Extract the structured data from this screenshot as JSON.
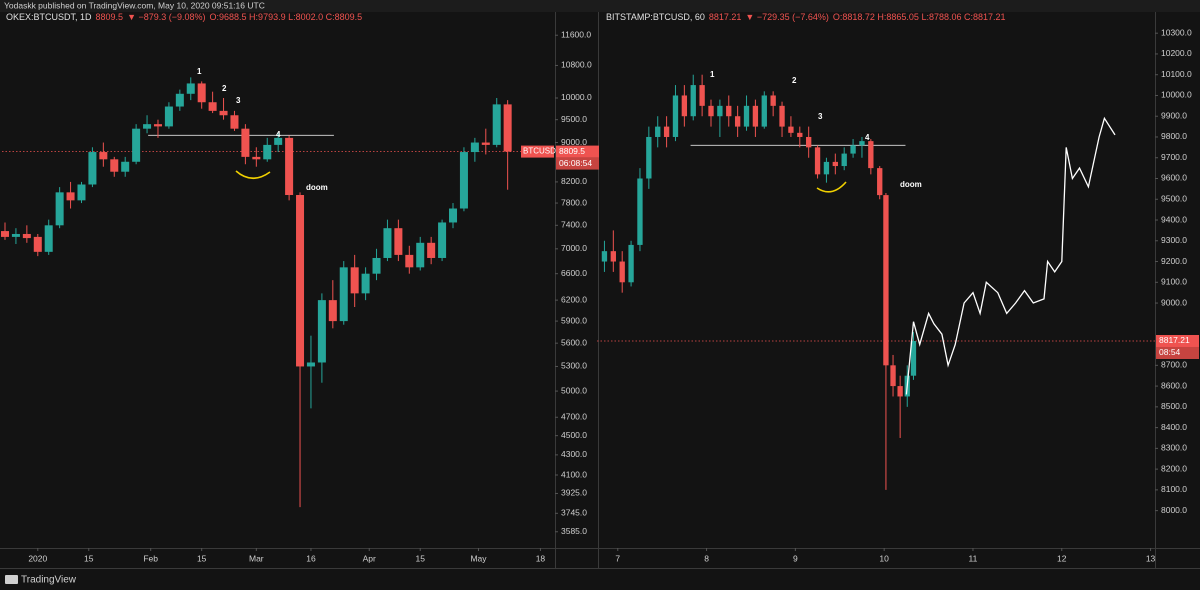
{
  "header": {
    "publisher": "Yodaskk published on TradingView.com, May 10, 2020 09:51:16 UTC"
  },
  "footer": {
    "brand": "TradingView"
  },
  "chart_data": [
    {
      "type": "candlestick",
      "symbol": "OKEX:BTCUSDT, 1D",
      "change": "▼ −879.3 (−9.08%)",
      "ohlc": "O:9688.5 H:9793.9 L:8002.0 C:8809.5",
      "tag": "BTCUSDT",
      "countdown": "06:08:54",
      "last_price": 8809.5,
      "log_scale": true,
      "up_color": "#26a69a",
      "down_color": "#ef5350",
      "xlim": [
        -9,
        142
      ],
      "xticks": [
        {
          "value": 0,
          "label": "2020"
        },
        {
          "value": 14,
          "label": "15"
        },
        {
          "value": 31,
          "label": "Feb"
        },
        {
          "value": 45,
          "label": "15"
        },
        {
          "value": 60,
          "label": "Mar"
        },
        {
          "value": 75,
          "label": "16"
        },
        {
          "value": 91,
          "label": "Apr"
        },
        {
          "value": 105,
          "label": "15"
        },
        {
          "value": 121,
          "label": "May"
        },
        {
          "value": 138,
          "label": "18"
        }
      ],
      "ylim": [
        3450,
        11800
      ],
      "yticks": [
        {
          "value": 11600,
          "label": "11600.0"
        },
        {
          "value": 10800,
          "label": "10800.0"
        },
        {
          "value": 10000,
          "label": "10000.0"
        },
        {
          "value": 9500,
          "label": "9500.0"
        },
        {
          "value": 9000,
          "label": "9000.0"
        },
        {
          "value": 8200,
          "label": "8200.0"
        },
        {
          "value": 7800,
          "label": "7800.0"
        },
        {
          "value": 7400,
          "label": "7400.0"
        },
        {
          "value": 7000,
          "label": "7000.0"
        },
        {
          "value": 6600,
          "label": "6600.0"
        },
        {
          "value": 6200,
          "label": "6200.0"
        },
        {
          "value": 5900,
          "label": "5900.0"
        },
        {
          "value": 5600,
          "label": "5600.0"
        },
        {
          "value": 5300,
          "label": "5300.0"
        },
        {
          "value": 5000,
          "label": "5000.0"
        },
        {
          "value": 4700,
          "label": "4700.0"
        },
        {
          "value": 4500,
          "label": "4500.0"
        },
        {
          "value": 4300,
          "label": "4300.0"
        },
        {
          "value": 4100,
          "label": "4100.0"
        },
        {
          "value": 3925,
          "label": "3925.0"
        },
        {
          "value": 3745,
          "label": "3745.0"
        },
        {
          "value": 3585,
          "label": "3585.0"
        }
      ],
      "candle_width": 2.2,
      "series": {
        "x": [
          -9,
          -6,
          -3,
          0,
          3,
          6,
          9,
          12,
          15,
          18,
          21,
          24,
          27,
          30,
          33,
          36,
          39,
          42,
          45,
          48,
          51,
          54,
          57,
          60,
          63,
          66,
          69,
          72,
          75,
          78,
          81,
          84,
          87,
          90,
          93,
          96,
          99,
          102,
          105,
          108,
          111,
          114,
          117,
          120,
          123,
          126,
          129
        ],
        "open": [
          7300,
          7200,
          7250,
          7200,
          6950,
          7400,
          8000,
          7850,
          8150,
          8800,
          8650,
          8400,
          8600,
          9300,
          9400,
          9350,
          9800,
          10100,
          10350,
          9900,
          9700,
          9600,
          9300,
          8700,
          8650,
          8950,
          9100,
          7950,
          5300,
          5350,
          6200,
          5900,
          6700,
          6300,
          6600,
          6850,
          7350,
          6900,
          6700,
          7100,
          6850,
          7450,
          7700,
          8800,
          9000,
          8950,
          9850
        ],
        "high": [
          7450,
          7350,
          7400,
          7250,
          7500,
          8100,
          8200,
          8200,
          8900,
          9000,
          8700,
          8700,
          9400,
          9600,
          9500,
          9900,
          10200,
          10500,
          10400,
          10150,
          10000,
          9700,
          9400,
          8900,
          9100,
          9200,
          9150,
          8000,
          5700,
          6300,
          6500,
          6800,
          6900,
          6700,
          7000,
          7500,
          7500,
          7050,
          7200,
          7200,
          7500,
          7800,
          8900,
          9100,
          9300,
          10000,
          9950
        ],
        "low": [
          7150,
          7080,
          7100,
          6880,
          6900,
          7350,
          7700,
          7800,
          8100,
          8500,
          8300,
          8300,
          8550,
          9200,
          9100,
          9300,
          9700,
          9950,
          9750,
          9650,
          9500,
          9250,
          8550,
          8500,
          8600,
          8800,
          7850,
          3800,
          4800,
          5100,
          5800,
          5850,
          6100,
          6200,
          6500,
          6800,
          6800,
          6600,
          6650,
          6750,
          6800,
          7350,
          7650,
          8600,
          8750,
          8900,
          8050
        ],
        "close": [
          7200,
          7250,
          7180,
          6950,
          7400,
          8000,
          7850,
          8150,
          8800,
          8650,
          8400,
          8600,
          9300,
          9400,
          9350,
          9800,
          10100,
          10350,
          9900,
          9700,
          9600,
          9300,
          8700,
          8650,
          8950,
          9100,
          7950,
          5300,
          5350,
          6200,
          5900,
          6700,
          6300,
          6600,
          6850,
          7350,
          6900,
          6700,
          7100,
          6850,
          7450,
          7700,
          8800,
          9000,
          8950,
          9850,
          8809.5
        ]
      },
      "levels": [
        {
          "x": [
            30.3,
            81.3
          ],
          "y": 9156
        }
      ],
      "annotations": [
        "1",
        "2",
        "3",
        "4",
        "doom"
      ]
    },
    {
      "type": "candlestick",
      "symbol": "BITSTAMP:BTCUSD, 60",
      "change": "▼ −729.35 (−7.64%)",
      "ohlc": "O:8818.72 H:8865.05 L:8788.06 C:8817.21",
      "countdown": "08:54",
      "last_price": 8817.21,
      "log_scale": false,
      "up_color": "#26a69a",
      "down_color": "#ef5350",
      "xlim": [
        6.8,
        13.05
      ],
      "xticks": [
        7,
        8,
        9,
        10,
        11,
        12,
        13
      ],
      "ylim": [
        7820,
        10325
      ],
      "yticks": [
        {
          "value": 10300,
          "label": "10300.0"
        },
        {
          "value": 10200,
          "label": "10200.0"
        },
        {
          "value": 10100,
          "label": "10100.0"
        },
        {
          "value": 10000,
          "label": "10000.0"
        },
        {
          "value": 9900,
          "label": "9900.0"
        },
        {
          "value": 9800,
          "label": "9800.0"
        },
        {
          "value": 9700,
          "label": "9700.0"
        },
        {
          "value": 9600,
          "label": "9600.0"
        },
        {
          "value": 9500,
          "label": "9500.0"
        },
        {
          "value": 9400,
          "label": "9400.0"
        },
        {
          "value": 9300,
          "label": "9300.0"
        },
        {
          "value": 9200,
          "label": "9200.0"
        },
        {
          "value": 9100,
          "label": "9100.0"
        },
        {
          "value": 9000,
          "label": "9000.0"
        },
        {
          "value": 8700,
          "label": "8700.0"
        },
        {
          "value": 8600,
          "label": "8600.0"
        },
        {
          "value": 8500,
          "label": "8500.0"
        },
        {
          "value": 8400,
          "label": "8400.0"
        },
        {
          "value": 8300,
          "label": "8300.0"
        },
        {
          "value": 8200,
          "label": "8200.0"
        },
        {
          "value": 8100,
          "label": "8100.0"
        },
        {
          "value": 8000,
          "label": "8000.0"
        }
      ],
      "candle_width": 0.06,
      "series": {
        "x": [
          6.85,
          6.95,
          7.05,
          7.15,
          7.25,
          7.35,
          7.45,
          7.55,
          7.65,
          7.75,
          7.85,
          7.95,
          8.05,
          8.15,
          8.25,
          8.35,
          8.45,
          8.55,
          8.65,
          8.75,
          8.85,
          8.95,
          9.05,
          9.15,
          9.25,
          9.35,
          9.45,
          9.55,
          9.65,
          9.75,
          9.85,
          9.95,
          10.02,
          10.1,
          10.18,
          10.26,
          10.33
        ],
        "open": [
          9200,
          9250,
          9200,
          9100,
          9280,
          9600,
          9800,
          9850,
          9800,
          10000,
          9900,
          10050,
          9950,
          9900,
          9950,
          9900,
          9850,
          9950,
          9850,
          10000,
          9950,
          9850,
          9820,
          9800,
          9750,
          9620,
          9680,
          9660,
          9720,
          9760,
          9780,
          9650,
          9520,
          8700,
          8600,
          8550,
          8650
        ],
        "high": [
          9300,
          9350,
          9250,
          9300,
          9650,
          9850,
          9900,
          9900,
          10050,
          10050,
          10100,
          10100,
          9980,
          9980,
          10000,
          9950,
          10000,
          9980,
          10020,
          10020,
          9970,
          9900,
          9850,
          9850,
          9760,
          9700,
          9720,
          9750,
          9790,
          9800,
          9790,
          9660,
          9530,
          8750,
          8650,
          8700,
          8860
        ],
        "low": [
          9150,
          9150,
          9050,
          9080,
          9250,
          9550,
          9750,
          9750,
          9780,
          9850,
          9880,
          9900,
          9850,
          9800,
          9850,
          9800,
          9830,
          9800,
          9840,
          9900,
          9800,
          9800,
          9750,
          9700,
          9600,
          9580,
          9620,
          9640,
          9700,
          9700,
          9620,
          9500,
          8100,
          8550,
          8350,
          8500,
          8630
        ],
        "close": [
          9250,
          9200,
          9100,
          9280,
          9600,
          9800,
          9850,
          9800,
          10000,
          9900,
          10050,
          9950,
          9900,
          9950,
          9900,
          9850,
          9950,
          9850,
          10000,
          9950,
          9850,
          9820,
          9800,
          9750,
          9620,
          9680,
          9660,
          9720,
          9760,
          9780,
          9650,
          9520,
          8700,
          8600,
          8550,
          8650,
          8817.21
        ]
      },
      "levels": [
        {
          "x": [
            7.82,
            10.24
          ],
          "y": 9760
        }
      ],
      "projection": {
        "color": "#ffffff",
        "x": [
          10.25,
          10.33,
          10.4,
          10.5,
          10.56,
          10.65,
          10.72,
          10.8,
          10.9,
          11.0,
          11.08,
          11.15,
          11.28,
          11.38,
          11.48,
          11.58,
          11.68,
          11.8,
          11.84,
          11.92,
          12.0,
          12.05,
          12.12,
          12.2,
          12.3,
          12.42,
          12.48,
          12.6
        ],
        "values": [
          8560,
          8910,
          8800,
          8950,
          8900,
          8850,
          8700,
          8800,
          9000,
          9050,
          8950,
          9100,
          9050,
          8950,
          9000,
          9060,
          9000,
          9020,
          9200,
          9150,
          9200,
          9750,
          9600,
          9650,
          9560,
          9800,
          9890,
          9810
        ]
      },
      "annotations": [
        "1",
        "2",
        "3",
        "4",
        "doom"
      ]
    }
  ]
}
